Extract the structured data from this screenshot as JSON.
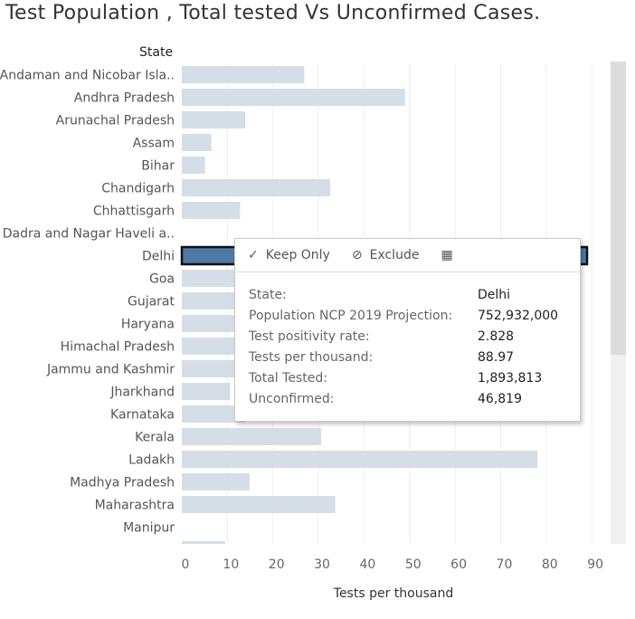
{
  "title": "Test Population , Total tested  Vs Unconfirmed Cases.",
  "chart_data": {
    "type": "bar",
    "orientation": "horizontal",
    "row_header": "State",
    "categories": [
      "Andaman and Nicobar Isla..",
      "Andhra Pradesh",
      "Arunachal Pradesh",
      "Assam",
      "Bihar",
      "Chandigarh",
      "Chhattisgarh",
      "Dadra and Nagar Haveli a..",
      "Delhi",
      "Goa",
      "Gujarat",
      "Haryana",
      "Himachal Pradesh",
      "Jammu and Kashmir",
      "Jharkhand",
      "Karnataka",
      "Kerala",
      "Ladakh",
      "Madhya Pradesh",
      "Maharashtra",
      "Manipur"
    ],
    "values": [
      26.9,
      49.0,
      13.9,
      6.5,
      5.1,
      32.6,
      12.8,
      0,
      88.97,
      14.0,
      12.0,
      16.0,
      14.0,
      18.0,
      10.6,
      14.0,
      30.6,
      78.1,
      14.9,
      33.7,
      0
    ],
    "partial_next_value": 9.5,
    "highlighted": "Delhi",
    "xlabel": "Tests per thousand",
    "xlim": [
      0,
      95
    ],
    "xticks": [
      0,
      10,
      20,
      30,
      40,
      50,
      60,
      70,
      80,
      90
    ],
    "grid": true,
    "colors": {
      "bar": "#d5dee6",
      "highlight": "#4e79a7",
      "highlight_border": "#111111",
      "grid": "#eeeeee"
    }
  },
  "tooltip": {
    "actions": [
      {
        "icon": "check-icon",
        "glyph": "✓",
        "label": "Keep Only"
      },
      {
        "icon": "exclude-icon",
        "glyph": "⊘",
        "label": "Exclude"
      },
      {
        "icon": "view-data-icon",
        "glyph": "▦",
        "label": ""
      }
    ],
    "rows": [
      {
        "key": "State:",
        "value": "Delhi"
      },
      {
        "key": "Population NCP 2019 Projection:",
        "value": "752,932,000"
      },
      {
        "key": "Test positivity rate:",
        "value": "2.828"
      },
      {
        "key": "Tests per thousand:",
        "value": "88.97"
      },
      {
        "key": "Total Tested:",
        "value": "1,893,813"
      },
      {
        "key": "Unconfirmed:",
        "value": "46,819"
      }
    ]
  }
}
